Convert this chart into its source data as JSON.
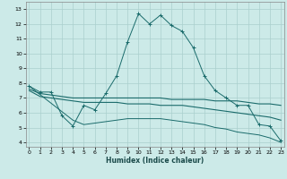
{
  "xlabel": "Humidex (Indice chaleur)",
  "bg_color": "#cceae8",
  "grid_color": "#aacfcd",
  "line_color": "#1a6b6b",
  "x_ticks": [
    0,
    1,
    2,
    3,
    4,
    5,
    6,
    7,
    8,
    9,
    10,
    11,
    12,
    13,
    14,
    15,
    16,
    17,
    18,
    19,
    20,
    21,
    22,
    23
  ],
  "y_ticks": [
    4,
    5,
    6,
    7,
    8,
    9,
    10,
    11,
    12,
    13
  ],
  "xlim": [
    -0.3,
    23.3
  ],
  "ylim": [
    3.7,
    13.5
  ],
  "line1_x": [
    0,
    1,
    2,
    3,
    4,
    5,
    6,
    7,
    8,
    9,
    10,
    11,
    12,
    13,
    14,
    15,
    16,
    17,
    18,
    19,
    20,
    21,
    22,
    23
  ],
  "line1_y": [
    7.8,
    7.4,
    7.4,
    5.8,
    5.1,
    6.5,
    6.2,
    7.3,
    8.5,
    10.8,
    12.7,
    12.0,
    12.6,
    11.9,
    11.5,
    10.4,
    8.5,
    7.5,
    7.0,
    6.5,
    6.5,
    5.2,
    5.1,
    4.1
  ],
  "line2_x": [
    0,
    1,
    2,
    3,
    4,
    5,
    6,
    7,
    8,
    9,
    10,
    11,
    12,
    13,
    14,
    15,
    16,
    17,
    18,
    19,
    20,
    21,
    22,
    23
  ],
  "line2_y": [
    7.6,
    7.3,
    7.2,
    7.1,
    7.0,
    7.0,
    7.0,
    7.0,
    7.0,
    7.0,
    7.0,
    7.0,
    7.0,
    6.9,
    6.9,
    6.9,
    6.9,
    6.8,
    6.8,
    6.8,
    6.7,
    6.6,
    6.6,
    6.5
  ],
  "line3_x": [
    0,
    1,
    2,
    3,
    4,
    5,
    6,
    7,
    8,
    9,
    10,
    11,
    12,
    13,
    14,
    15,
    16,
    17,
    18,
    19,
    20,
    21,
    22,
    23
  ],
  "line3_y": [
    7.5,
    7.1,
    7.0,
    6.9,
    6.8,
    6.7,
    6.7,
    6.7,
    6.7,
    6.6,
    6.6,
    6.6,
    6.5,
    6.5,
    6.5,
    6.4,
    6.3,
    6.2,
    6.1,
    6.0,
    5.9,
    5.8,
    5.7,
    5.5
  ],
  "line4_x": [
    0,
    4,
    5,
    6,
    7,
    8,
    9,
    10,
    11,
    12,
    13,
    14,
    15,
    16,
    17,
    18,
    19,
    20,
    21,
    22,
    23
  ],
  "line4_y": [
    7.8,
    5.5,
    5.2,
    5.3,
    5.4,
    5.5,
    5.6,
    5.6,
    5.6,
    5.6,
    5.5,
    5.4,
    5.3,
    5.2,
    5.0,
    4.9,
    4.7,
    4.6,
    4.5,
    4.3,
    4.0
  ]
}
